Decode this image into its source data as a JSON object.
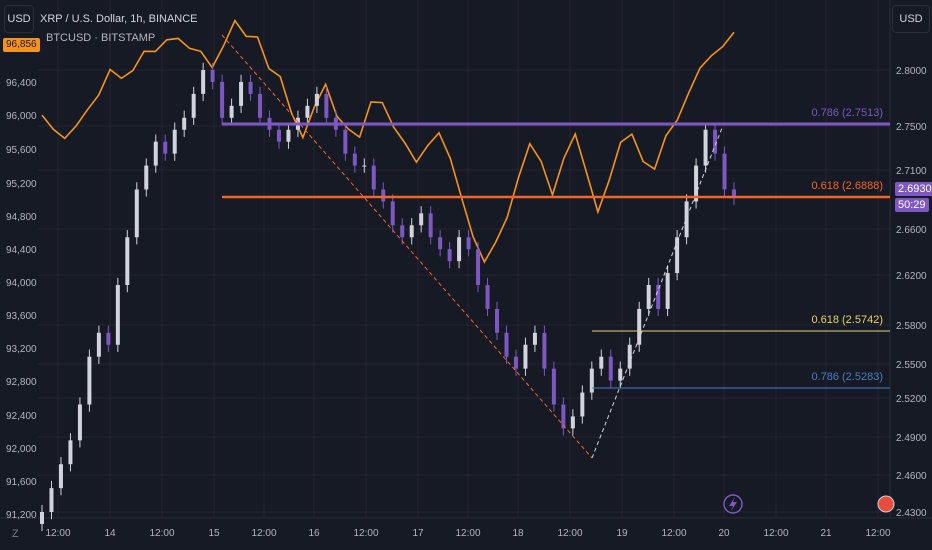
{
  "header": {
    "symbol_title": "XRP / U.S. Dollar, 1h, BINANCE",
    "overlay_symbol": "BTCUSD · BITSTAMP",
    "overlay_last_value": "96,856"
  },
  "buttons": {
    "left_currency": "USD",
    "right_currency": "USD",
    "z_label": "Z"
  },
  "price": {
    "last": "2.6930",
    "countdown": "50:29"
  },
  "colors": {
    "background": "#161a25",
    "grid": "#242733",
    "up_candle": "#d1d4dc",
    "down_candle": "#7e57c2",
    "btc_line": "#f7931a",
    "fib_786_high": "#7e57c2",
    "fib_618_high": "#f5642a",
    "fib_618_low": "#e8d26a",
    "fib_786_low": "#4a7fbf",
    "tv_alert_icon": "#7e57c2"
  },
  "chart_data": {
    "type": "candlestick",
    "right_axis": {
      "unit": "USD",
      "ticks": [
        "2.8000",
        "2.7500",
        "2.7100",
        "2.6600",
        "2.6200",
        "2.5800",
        "2.5500",
        "2.5200",
        "2.4900",
        "2.4600",
        "2.4300"
      ]
    },
    "left_axis": {
      "unit": "USD",
      "ticks": [
        "96,400",
        "96,000",
        "95,600",
        "95,200",
        "94,800",
        "94,400",
        "94,000",
        "93,600",
        "93,200",
        "92,800",
        "92,400",
        "92,000",
        "91,600",
        "91,200"
      ]
    },
    "x_axis_ticks": [
      "12:00",
      "14",
      "12:00",
      "15",
      "12:00",
      "16",
      "12:00",
      "17",
      "12:00",
      "18",
      "12:00",
      "19",
      "12:00",
      "20",
      "12:00",
      "21",
      "12:00"
    ],
    "fib_levels": [
      {
        "label": "0.786 (2.7513)",
        "value": 2.7513
      },
      {
        "label": "0.618 (2.6888)",
        "value": 2.6888
      },
      {
        "label": "0.618 (2.5742)",
        "value": 2.5742
      },
      {
        "label": "0.786 (2.5283)",
        "value": 2.5283
      }
    ],
    "xrp_close_approx": [
      2.43,
      2.45,
      2.47,
      2.49,
      2.52,
      2.56,
      2.58,
      2.57,
      2.62,
      2.66,
      2.7,
      2.72,
      2.74,
      2.73,
      2.75,
      2.76,
      2.78,
      2.8,
      2.79,
      2.76,
      2.77,
      2.79,
      2.78,
      2.76,
      2.75,
      2.74,
      2.75,
      2.76,
      2.77,
      2.78,
      2.76,
      2.75,
      2.73,
      2.72,
      2.72,
      2.7,
      2.69,
      2.67,
      2.66,
      2.67,
      2.68,
      2.66,
      2.65,
      2.64,
      2.66,
      2.65,
      2.62,
      2.6,
      2.58,
      2.56,
      2.55,
      2.57,
      2.58,
      2.55,
      2.52,
      2.5,
      2.51,
      2.53,
      2.55,
      2.56,
      2.54,
      2.55,
      2.57,
      2.6,
      2.62,
      2.6,
      2.63,
      2.66,
      2.69,
      2.72,
      2.75,
      2.73,
      2.7,
      2.693
    ],
    "btcusd_approx": [
      96000,
      95900,
      95700,
      95800,
      96100,
      96300,
      96500,
      96400,
      96600,
      96800,
      96700,
      96900,
      97000,
      96800,
      96700,
      96600,
      96900,
      97100,
      96900,
      97000,
      96600,
      96400,
      96000,
      95800,
      96100,
      96300,
      96000,
      95900,
      95700,
      96100,
      96200,
      95900,
      95600,
      95400,
      95700,
      95800,
      95400,
      95000,
      94600,
      94200,
      94400,
      94800,
      95300,
      95600,
      95400,
      95100,
      95500,
      95700,
      95300,
      94900,
      95200,
      95600,
      95800,
      95500,
      95300,
      95700,
      96000,
      96300,
      96500,
      96700,
      96900,
      97000
    ]
  }
}
